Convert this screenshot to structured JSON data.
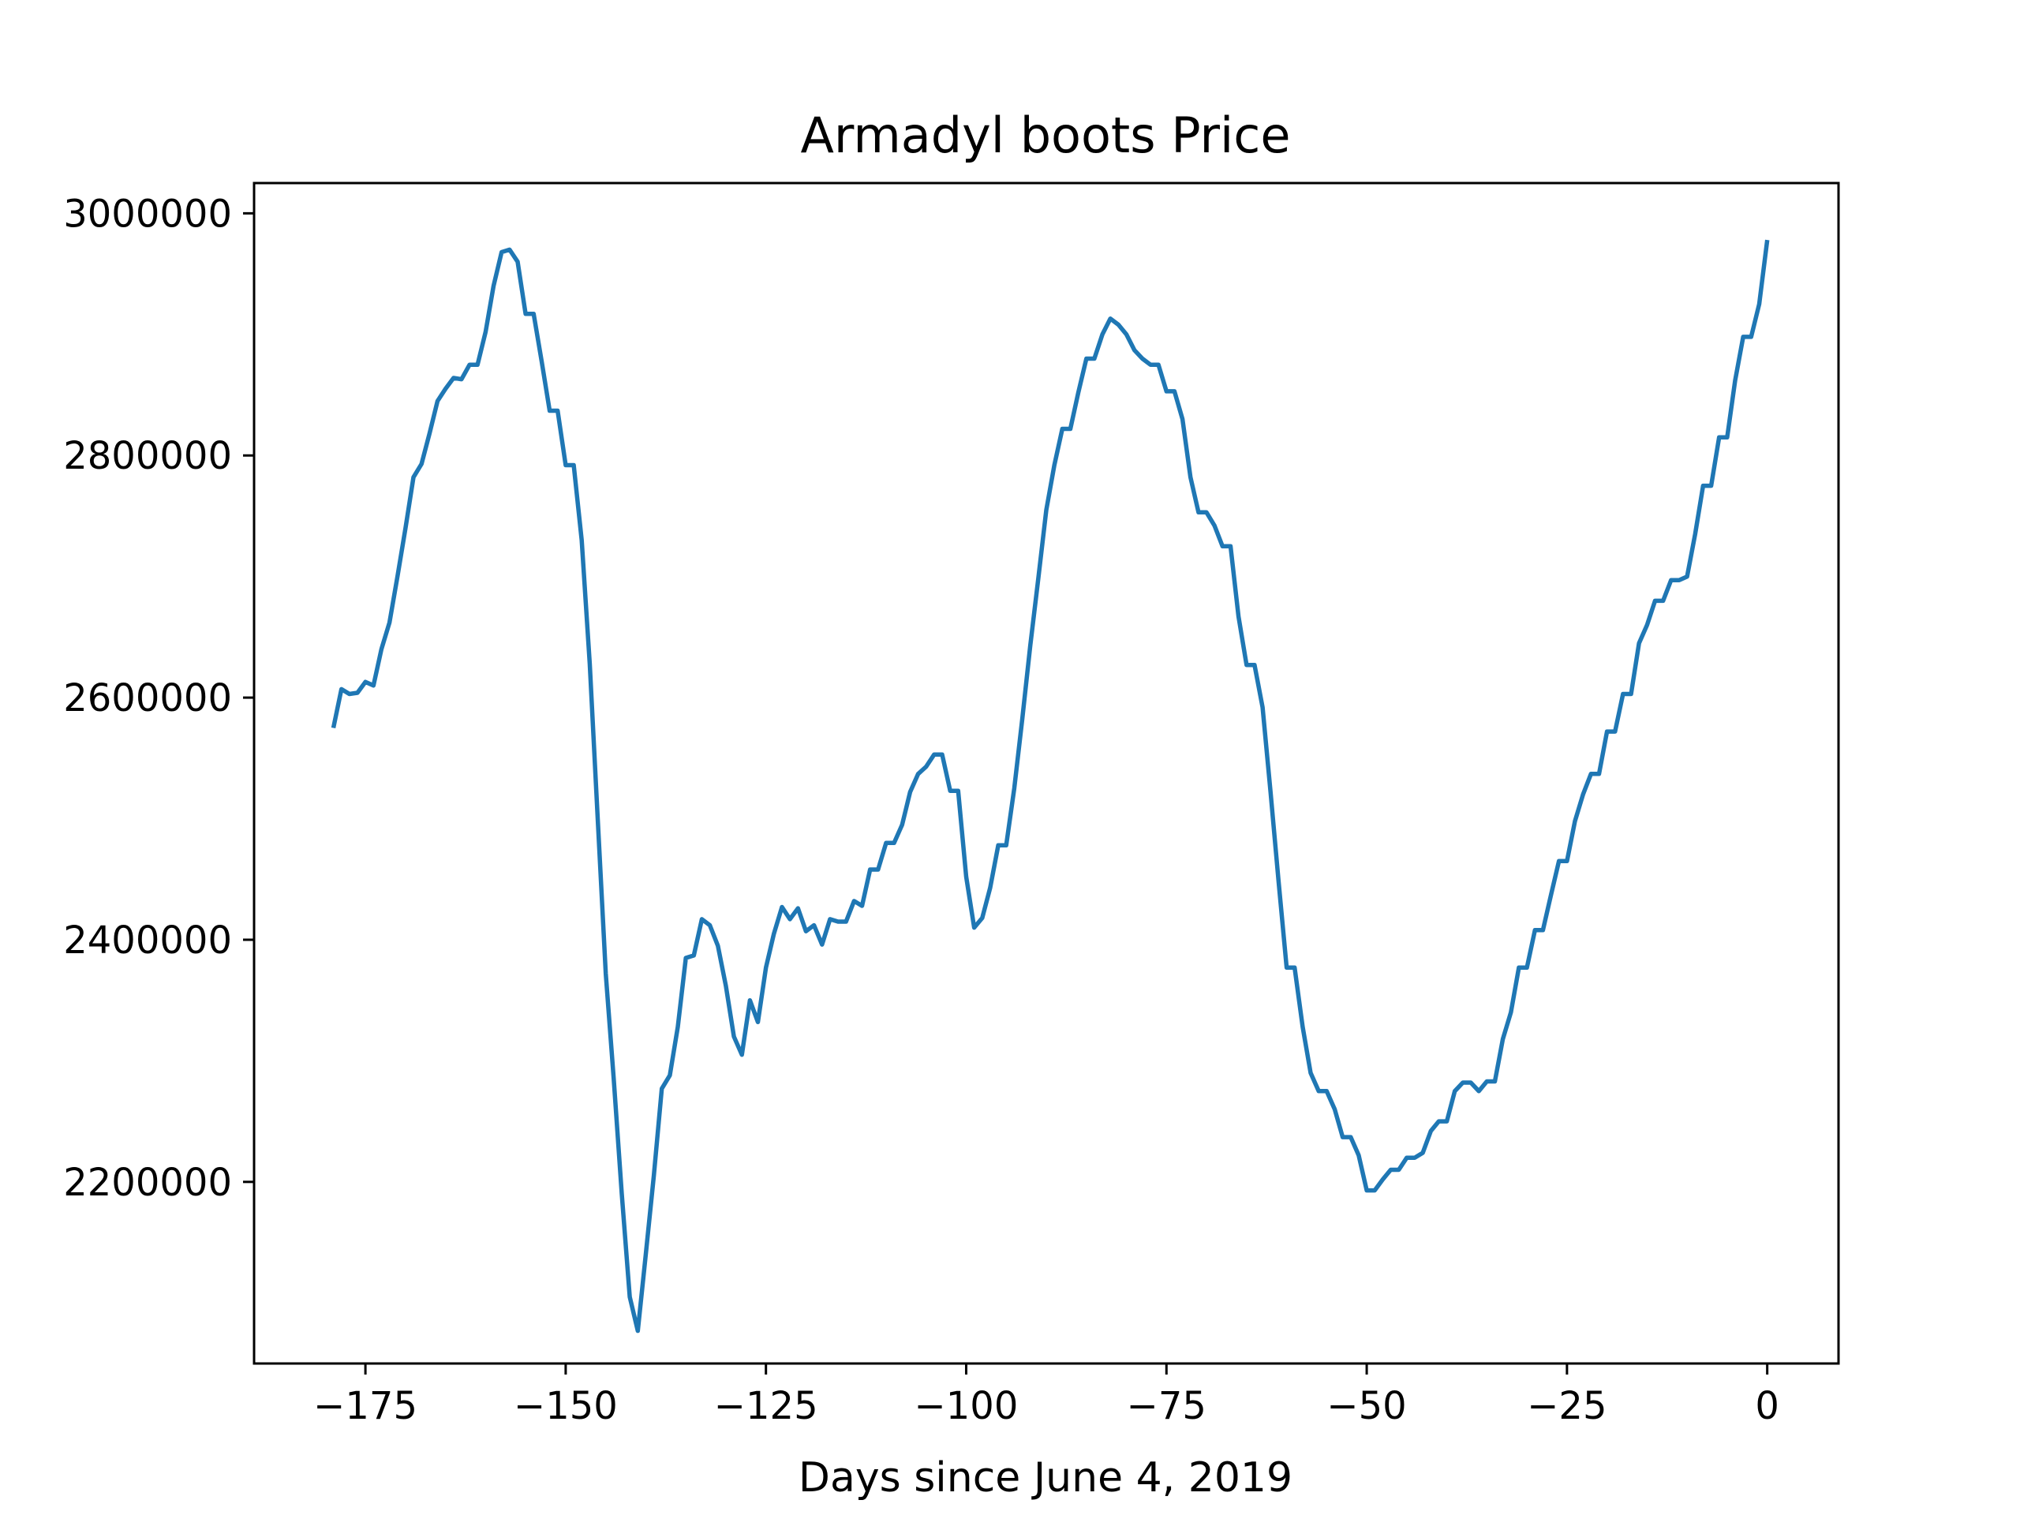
{
  "chart_data": {
    "type": "line",
    "title": "Armadyl boots Price",
    "xlabel": "Days since June 4, 2019",
    "ylabel": "",
    "xlim": [
      -188.9,
      8.9
    ],
    "ylim": [
      2050000,
      3025000
    ],
    "xticks": [
      -175,
      -150,
      -125,
      -100,
      -75,
      -50,
      -25,
      0
    ],
    "xtick_labels": [
      "−175",
      "−150",
      "−125",
      "−100",
      "−75",
      "−50",
      "−25",
      "0"
    ],
    "yticks": [
      2200000,
      2400000,
      2600000,
      2800000,
      3000000
    ],
    "ytick_labels": [
      "2200000",
      "2400000",
      "2600000",
      "2800000",
      "3000000"
    ],
    "grid": false,
    "colors": {
      "line": "#1f77b4",
      "axes": "#000000",
      "background": "#ffffff"
    },
    "series": [
      {
        "name": "",
        "points": [
          [
            -179,
            2575000
          ],
          [
            -178,
            2607000
          ],
          [
            -177,
            2603000
          ],
          [
            -176,
            2604000
          ],
          [
            -175,
            2613000
          ],
          [
            -174,
            2610000
          ],
          [
            -173,
            2640000
          ],
          [
            -172,
            2662000
          ],
          [
            -171,
            2700000
          ],
          [
            -170,
            2740000
          ],
          [
            -169,
            2782000
          ],
          [
            -168,
            2793000
          ],
          [
            -167,
            2818000
          ],
          [
            -166,
            2845000
          ],
          [
            -165,
            2855000
          ],
          [
            -164,
            2864000
          ],
          [
            -163,
            2863000
          ],
          [
            -162,
            2875000
          ],
          [
            -161,
            2875000
          ],
          [
            -160,
            2902000
          ],
          [
            -159,
            2940000
          ],
          [
            -158,
            2968000
          ],
          [
            -157,
            2970000
          ],
          [
            -156,
            2960000
          ],
          [
            -155,
            2917000
          ],
          [
            -154,
            2917000
          ],
          [
            -153,
            2878000
          ],
          [
            -152,
            2837000
          ],
          [
            -151,
            2837000
          ],
          [
            -150,
            2792000
          ],
          [
            -149,
            2792000
          ],
          [
            -148,
            2730000
          ],
          [
            -147,
            2628000
          ],
          [
            -146,
            2500000
          ],
          [
            -145,
            2372000
          ],
          [
            -144,
            2285000
          ],
          [
            -143,
            2190000
          ],
          [
            -142,
            2105000
          ],
          [
            -141,
            2077000
          ],
          [
            -140,
            2140000
          ],
          [
            -139,
            2205000
          ],
          [
            -138,
            2277000
          ],
          [
            -137,
            2288000
          ],
          [
            -136,
            2328000
          ],
          [
            -135,
            2385000
          ],
          [
            -134,
            2387000
          ],
          [
            -133,
            2417000
          ],
          [
            -132,
            2412000
          ],
          [
            -131,
            2395000
          ],
          [
            -130,
            2362000
          ],
          [
            -129,
            2320000
          ],
          [
            -128,
            2305000
          ],
          [
            -127,
            2350000
          ],
          [
            -126,
            2332000
          ],
          [
            -125,
            2377000
          ],
          [
            -124,
            2405000
          ],
          [
            -123,
            2427000
          ],
          [
            -122,
            2417000
          ],
          [
            -121,
            2426000
          ],
          [
            -120,
            2407000
          ],
          [
            -119,
            2412000
          ],
          [
            -118,
            2396000
          ],
          [
            -117,
            2417000
          ],
          [
            -116,
            2415000
          ],
          [
            -115,
            2415000
          ],
          [
            -114,
            2432000
          ],
          [
            -113,
            2428000
          ],
          [
            -112,
            2458000
          ],
          [
            -111,
            2458000
          ],
          [
            -110,
            2480000
          ],
          [
            -109,
            2480000
          ],
          [
            -108,
            2495000
          ],
          [
            -107,
            2522000
          ],
          [
            -106,
            2537000
          ],
          [
            -105,
            2543000
          ],
          [
            -104,
            2553000
          ],
          [
            -103,
            2553000
          ],
          [
            -102,
            2523000
          ],
          [
            -101,
            2523000
          ],
          [
            -100,
            2452000
          ],
          [
            -99,
            2410000
          ],
          [
            -98,
            2418000
          ],
          [
            -97,
            2443000
          ],
          [
            -96,
            2478000
          ],
          [
            -95,
            2478000
          ],
          [
            -94,
            2525000
          ],
          [
            -93,
            2582000
          ],
          [
            -92,
            2643000
          ],
          [
            -91,
            2698000
          ],
          [
            -90,
            2755000
          ],
          [
            -89,
            2792000
          ],
          [
            -88,
            2822000
          ],
          [
            -87,
            2822000
          ],
          [
            -86,
            2852000
          ],
          [
            -85,
            2880000
          ],
          [
            -84,
            2880000
          ],
          [
            -83,
            2900000
          ],
          [
            -82,
            2913000
          ],
          [
            -81,
            2908000
          ],
          [
            -80,
            2900000
          ],
          [
            -79,
            2887000
          ],
          [
            -78,
            2880000
          ],
          [
            -77,
            2875000
          ],
          [
            -76,
            2875000
          ],
          [
            -75,
            2853000
          ],
          [
            -74,
            2853000
          ],
          [
            -73,
            2830000
          ],
          [
            -72,
            2782000
          ],
          [
            -71,
            2753000
          ],
          [
            -70,
            2753000
          ],
          [
            -69,
            2742000
          ],
          [
            -68,
            2725000
          ],
          [
            -67,
            2725000
          ],
          [
            -66,
            2667000
          ],
          [
            -65,
            2627000
          ],
          [
            -64,
            2627000
          ],
          [
            -63,
            2592000
          ],
          [
            -62,
            2522000
          ],
          [
            -61,
            2448000
          ],
          [
            -60,
            2377000
          ],
          [
            -59,
            2377000
          ],
          [
            -58,
            2328000
          ],
          [
            -57,
            2290000
          ],
          [
            -56,
            2275000
          ],
          [
            -55,
            2275000
          ],
          [
            -54,
            2260000
          ],
          [
            -53,
            2237000
          ],
          [
            -52,
            2237000
          ],
          [
            -51,
            2222000
          ],
          [
            -50,
            2193000
          ],
          [
            -49,
            2193000
          ],
          [
            -48,
            2202000
          ],
          [
            -47,
            2210000
          ],
          [
            -46,
            2210000
          ],
          [
            -45,
            2220000
          ],
          [
            -44,
            2220000
          ],
          [
            -43,
            2224000
          ],
          [
            -42,
            2242000
          ],
          [
            -41,
            2250000
          ],
          [
            -40,
            2250000
          ],
          [
            -39,
            2275000
          ],
          [
            -38,
            2282000
          ],
          [
            -37,
            2282000
          ],
          [
            -36,
            2275000
          ],
          [
            -35,
            2283000
          ],
          [
            -34,
            2283000
          ],
          [
            -33,
            2318000
          ],
          [
            -32,
            2340000
          ],
          [
            -31,
            2377000
          ],
          [
            -30,
            2377000
          ],
          [
            -29,
            2408000
          ],
          [
            -28,
            2408000
          ],
          [
            -27,
            2437000
          ],
          [
            -26,
            2465000
          ],
          [
            -25,
            2465000
          ],
          [
            -24,
            2498000
          ],
          [
            -23,
            2520000
          ],
          [
            -22,
            2537000
          ],
          [
            -21,
            2537000
          ],
          [
            -20,
            2572000
          ],
          [
            -19,
            2572000
          ],
          [
            -18,
            2603000
          ],
          [
            -17,
            2603000
          ],
          [
            -16,
            2645000
          ],
          [
            -15,
            2660000
          ],
          [
            -14,
            2680000
          ],
          [
            -13,
            2680000
          ],
          [
            -12,
            2697000
          ],
          [
            -11,
            2697000
          ],
          [
            -10,
            2700000
          ],
          [
            -9,
            2735000
          ],
          [
            -8,
            2775000
          ],
          [
            -7,
            2775000
          ],
          [
            -6,
            2815000
          ],
          [
            -5,
            2815000
          ],
          [
            -4,
            2862000
          ],
          [
            -3,
            2898000
          ],
          [
            -2,
            2898000
          ],
          [
            -1,
            2925000
          ],
          [
            0,
            2978000
          ]
        ]
      }
    ]
  }
}
